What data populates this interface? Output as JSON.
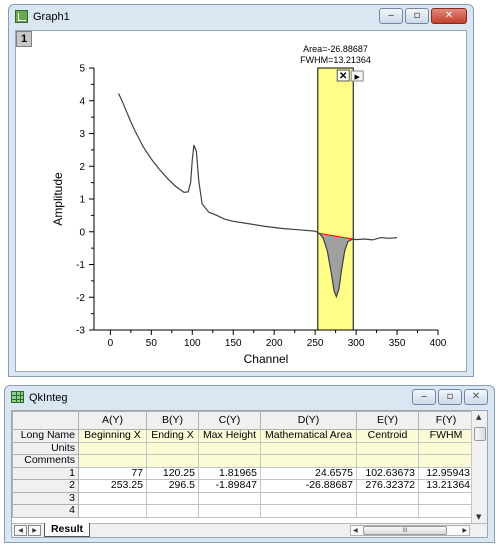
{
  "graph_window": {
    "title": "Graph1",
    "layer_label": "1",
    "buttons": {
      "minimize": "‒",
      "maximize": "▫",
      "close": "✕"
    }
  },
  "plot": {
    "annotation_area": "Area=-26.88687",
    "annotation_fwhm": "FWHM=13.21364",
    "close_glyph": "✕",
    "next_glyph": "▶",
    "highlight_color": "#ffff88",
    "curve_color": "#404040",
    "fill_color": "#a0a0a0",
    "baseline_color": "#ff0000"
  },
  "chart_data": {
    "type": "line",
    "title": "",
    "xlabel": "Channel",
    "ylabel": "Amplitude",
    "xlim": [
      -20,
      400
    ],
    "ylim": [
      -3,
      5
    ],
    "xticks": [
      0,
      50,
      100,
      150,
      200,
      250,
      300,
      350,
      400
    ],
    "yticks": [
      -3,
      -2,
      -1,
      0,
      1,
      2,
      3,
      4,
      5
    ],
    "highlight_range": [
      253.25,
      296.5
    ],
    "x": [
      10,
      15,
      20,
      25,
      30,
      40,
      50,
      60,
      70,
      80,
      90,
      95,
      98,
      100,
      102,
      105,
      108,
      112,
      120,
      130,
      140,
      150,
      170,
      190,
      210,
      230,
      250,
      255,
      260,
      265,
      270,
      273,
      276,
      279,
      282,
      286,
      290,
      296,
      300,
      310,
      320,
      330,
      340,
      350
    ],
    "y": [
      4.22,
      3.95,
      3.65,
      3.35,
      3.08,
      2.6,
      2.22,
      1.9,
      1.62,
      1.38,
      1.2,
      1.22,
      1.5,
      2.2,
      2.65,
      2.45,
      1.55,
      0.85,
      0.6,
      0.5,
      0.38,
      0.32,
      0.24,
      0.16,
      0.1,
      0.06,
      0.02,
      -0.05,
      -0.2,
      -0.6,
      -1.3,
      -1.8,
      -1.98,
      -1.75,
      -1.2,
      -0.6,
      -0.3,
      -0.22,
      -0.24,
      -0.22,
      -0.25,
      -0.18,
      -0.2,
      -0.18
    ]
  },
  "worksheet": {
    "title": "QkInteg",
    "columns": [
      "A(Y)",
      "B(Y)",
      "C(Y)",
      "D(Y)",
      "E(Y)",
      "F(Y)"
    ],
    "long_name_label": "Long Name",
    "long_names": [
      "Beginning X",
      "Ending X",
      "Max Height",
      "Mathematical Area",
      "Centroid",
      "FWHM"
    ],
    "units_label": "Units",
    "comments_label": "Comments",
    "rows": [
      {
        "index": "1",
        "values": [
          "77",
          "120.25",
          "1.81965",
          "24.6575",
          "102.63673",
          "12.95943"
        ]
      },
      {
        "index": "2",
        "values": [
          "253.25",
          "296.5",
          "-1.89847",
          "-26.88687",
          "276.32372",
          "13.21364"
        ]
      },
      {
        "index": "3",
        "values": [
          "",
          "",
          "",
          "",
          "",
          ""
        ]
      },
      {
        "index": "4",
        "values": [
          "",
          "",
          "",
          "",
          "",
          ""
        ]
      }
    ],
    "sheet_tab": "Result",
    "scroll_glyph": "III"
  }
}
